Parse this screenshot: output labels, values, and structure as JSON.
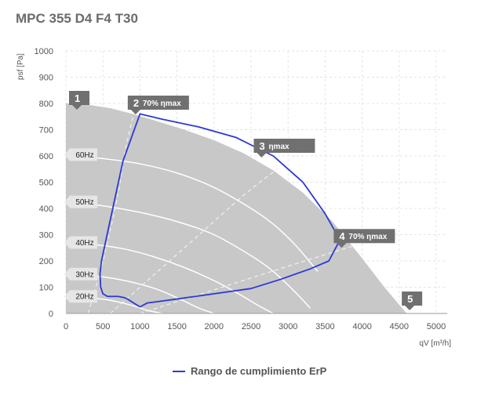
{
  "chart_data": {
    "type": "line",
    "title": "MPC 355 D4 F4 T30",
    "xlabel": "qV [m³/h]",
    "ylabel": "psf [Pa]",
    "xlim": [
      0,
      5000
    ],
    "ylim": [
      0,
      1000
    ],
    "xticks": [
      0,
      500,
      1000,
      1500,
      2000,
      2500,
      3000,
      3500,
      4000,
      4500,
      5000
    ],
    "yticks": [
      0,
      100,
      200,
      300,
      400,
      500,
      600,
      700,
      800,
      900,
      1000
    ],
    "grid": true,
    "colors": {
      "envelope_fill": "#c8c8c8",
      "erp_line": "#2f37d6",
      "speed_curve": "#ffffff",
      "marker": "#707070"
    },
    "envelope": {
      "x": [
        0,
        300,
        600,
        900,
        1200,
        1600,
        2000,
        2400,
        2800,
        3200,
        3600,
        4000,
        4300,
        4600,
        0
      ],
      "y": [
        800,
        795,
        782,
        760,
        735,
        700,
        660,
        610,
        545,
        460,
        350,
        210,
        100,
        0,
        0
      ]
    },
    "speed_curves": [
      {
        "name": "60Hz",
        "x": [
          0,
          500,
          1000,
          1500,
          2000,
          2500,
          2800,
          3100,
          3400
        ],
        "y": [
          605,
          590,
          570,
          535,
          480,
          400,
          340,
          260,
          160
        ]
      },
      {
        "name": "50Hz",
        "x": [
          0,
          500,
          1000,
          1500,
          2000,
          2500,
          2800,
          3100,
          3300
        ],
        "y": [
          425,
          410,
          385,
          350,
          300,
          220,
          160,
          80,
          20
        ]
      },
      {
        "name": "40Hz",
        "x": [
          0,
          400,
          800,
          1200,
          1600,
          2000,
          2300,
          2600,
          2800
        ],
        "y": [
          270,
          262,
          245,
          215,
          175,
          125,
          80,
          30,
          0
        ]
      },
      {
        "name": "30Hz",
        "x": [
          0,
          400,
          800,
          1200,
          1500,
          1800,
          2000
        ],
        "y": [
          150,
          143,
          125,
          95,
          60,
          20,
          0
        ]
      },
      {
        "name": "20Hz",
        "x": [
          0,
          300,
          600,
          900,
          1100,
          1300
        ],
        "y": [
          65,
          60,
          50,
          30,
          12,
          0
        ]
      }
    ],
    "efficiency_lines": [
      {
        "x": [
          300,
          500,
          700,
          800,
          950
        ],
        "y": [
          0,
          200,
          450,
          620,
          800
        ]
      },
      {
        "x": [
          600,
          1200,
          1800,
          2400,
          2900,
          3200
        ],
        "y": [
          0,
          150,
          300,
          450,
          560,
          620
        ]
      },
      {
        "x": [
          1000,
          2000,
          3000,
          3800,
          4400
        ],
        "y": [
          0,
          90,
          180,
          250,
          300
        ]
      }
    ],
    "erp_range": {
      "name": "Rango de cumplimiento ErP",
      "x": [
        1000,
        830,
        790,
        760,
        700,
        560,
        500,
        470,
        460,
        480,
        770,
        1000,
        1300,
        1800,
        2300,
        2800,
        3200,
        3500,
        3700,
        3550,
        3300,
        2900,
        2500,
        2000,
        1500,
        1100,
        1000
      ],
      "y": [
        25,
        55,
        60,
        62,
        65,
        65,
        75,
        100,
        150,
        200,
        580,
        760,
        740,
        710,
        670,
        600,
        500,
        380,
        280,
        200,
        170,
        130,
        95,
        75,
        55,
        40,
        25
      ]
    },
    "speed_labels": [
      {
        "text": "60Hz",
        "y": 605
      },
      {
        "text": "50Hz",
        "y": 425
      },
      {
        "text": "40Hz",
        "y": 270
      },
      {
        "text": "30Hz",
        "y": 150
      },
      {
        "text": "20Hz",
        "y": 65
      }
    ],
    "points": [
      {
        "num": "1",
        "label": "",
        "x": 0,
        "y": 800
      },
      {
        "num": "2",
        "label": "70% ηmax",
        "x": 920,
        "y": 770
      },
      {
        "num": "3",
        "label": "ηmax",
        "x": 2600,
        "y": 600
      },
      {
        "num": "4",
        "label": "70% ηmax",
        "x": 3680,
        "y": 280
      },
      {
        "num": "5",
        "label": "",
        "x": 4620,
        "y": 0
      }
    ],
    "legend": {
      "position": "bottom",
      "entries": [
        "Rango de cumplimiento ErP"
      ]
    }
  }
}
